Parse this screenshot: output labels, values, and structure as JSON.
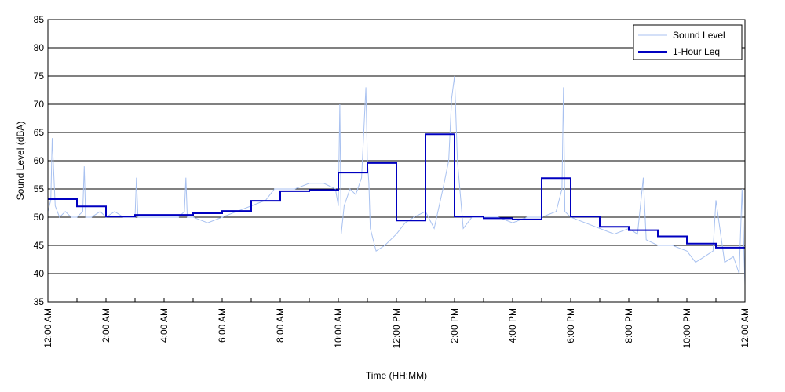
{
  "chart_data": {
    "type": "line",
    "title": "",
    "xlabel": "Time (HH:MM)",
    "ylabel": "Sound Level (dBA)",
    "ylim": [
      35,
      85
    ],
    "yticks": [
      35,
      40,
      45,
      50,
      55,
      60,
      65,
      70,
      75,
      80,
      85
    ],
    "xlim_hours": [
      0,
      24
    ],
    "xtick_hours": [
      0,
      2,
      4,
      6,
      8,
      10,
      12,
      14,
      16,
      18,
      20,
      22,
      24
    ],
    "xtick_labels": [
      "12:00 AM",
      "2:00 AM",
      "4:00 AM",
      "6:00 AM",
      "8:00 AM",
      "10:00 AM",
      "12:00 PM",
      "2:00 PM",
      "4:00 PM",
      "6:00 PM",
      "8:00 PM",
      "10:00 PM",
      "12:00 AM"
    ],
    "grid": "horizontal",
    "legend": "top-right",
    "series": [
      {
        "name": "Sound Level",
        "color": "#a8c1f0",
        "x_hours": [
          0,
          0.1,
          0.15,
          0.25,
          0.4,
          0.6,
          0.8,
          1.0,
          1.2,
          1.25,
          1.3,
          1.5,
          1.8,
          2.0,
          2.3,
          2.6,
          2.9,
          3.0,
          3.05,
          3.1,
          3.5,
          4.0,
          4.5,
          4.7,
          4.75,
          4.8,
          5.0,
          5.5,
          6.0,
          6.5,
          7.0,
          7.5,
          7.8,
          8.0,
          8.5,
          9.0,
          9.5,
          9.9,
          10.0,
          10.05,
          10.1,
          10.2,
          10.4,
          10.6,
          10.8,
          10.95,
          11.0,
          11.05,
          11.1,
          11.3,
          11.6,
          12.0,
          12.3,
          12.6,
          13.0,
          13.3,
          13.6,
          13.8,
          13.9,
          14.0,
          14.1,
          14.3,
          14.6,
          15.0,
          15.5,
          16.0,
          16.5,
          17.0,
          17.5,
          17.7,
          17.75,
          17.8,
          18.0,
          18.5,
          19.0,
          19.5,
          20.0,
          20.3,
          20.5,
          20.6,
          21.0,
          21.5,
          22.0,
          22.3,
          22.6,
          22.9,
          23.0,
          23.3,
          23.6,
          23.8,
          23.9,
          24.0
        ],
        "values": [
          51,
          53,
          64,
          52,
          50,
          51,
          50,
          50,
          51,
          59,
          50,
          50,
          51,
          50,
          51,
          50,
          50,
          50,
          57,
          50,
          50,
          50,
          50,
          51,
          57,
          50,
          50,
          49,
          50,
          51,
          52,
          53,
          55,
          55,
          55,
          56,
          56,
          55,
          52,
          70,
          47,
          52,
          55,
          54,
          57,
          73,
          60,
          56,
          48,
          44,
          45,
          47,
          49,
          50,
          51,
          48,
          55,
          60,
          71,
          75,
          60,
          48,
          50,
          50,
          50,
          49,
          50,
          50,
          51,
          55,
          73,
          51,
          50,
          49,
          48,
          47,
          48,
          47,
          57,
          46,
          45,
          45,
          44,
          42,
          43,
          44,
          53,
          42,
          43,
          40,
          55,
          38
        ]
      },
      {
        "name": "1-Hour Leq",
        "color": "#0000c0",
        "step": true,
        "x_hours": [
          0,
          1,
          2,
          3,
          4,
          5,
          6,
          7,
          8,
          9,
          10,
          11,
          12,
          13,
          14,
          15,
          16,
          17,
          18,
          19,
          20,
          21,
          22,
          23
        ],
        "values": [
          53.2,
          51.9,
          50.1,
          50.4,
          50.4,
          50.7,
          51.1,
          52.9,
          54.6,
          54.8,
          57.9,
          59.6,
          49.4,
          64.7,
          50.1,
          49.8,
          49.6,
          56.9,
          50.1,
          48.3,
          47.7,
          46.6,
          45.3,
          44.6
        ]
      }
    ]
  }
}
